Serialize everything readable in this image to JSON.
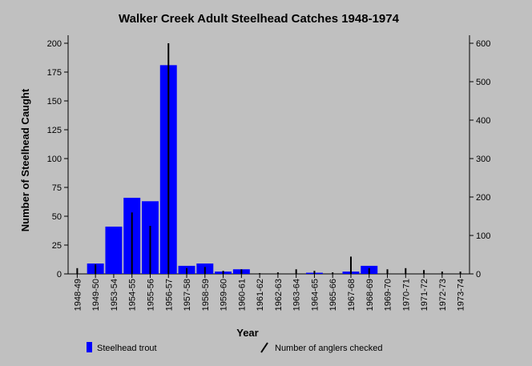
{
  "chart_data": {
    "type": "bar",
    "title": "Walker Creek Adult Steelhead Catches 1948-1974",
    "xlabel": "Year",
    "ylabel": "Number of Steelhead Caught",
    "y2label": "",
    "categories": [
      "1948-49",
      "1949-50",
      "1953-54",
      "1954-55",
      "1955-56",
      "1956-57",
      "1957-58",
      "1958-59",
      "1959-60",
      "1960-61",
      "1961-62",
      "1962-63",
      "1963-64",
      "1964-65",
      "1965-66",
      "1967-68",
      "1968-69",
      "1969-70",
      "1970-71",
      "1971-72",
      "1972-73",
      "1973-74"
    ],
    "ylim": [
      0,
      200
    ],
    "y2lim": [
      0,
      600
    ],
    "yticks": [
      0,
      25,
      50,
      75,
      100,
      125,
      150,
      175,
      200
    ],
    "y2ticks": [
      0,
      100,
      200,
      300,
      400,
      500,
      600
    ],
    "series": [
      {
        "name": "Steelhead trout",
        "kind": "bar",
        "axis": "left",
        "color": "#0000ff",
        "values": [
          0,
          9,
          41,
          66,
          63,
          181,
          7,
          9,
          2,
          4,
          0,
          0,
          0,
          1,
          0,
          2,
          7,
          0,
          0,
          0,
          0,
          0
        ]
      },
      {
        "name": "Number of anglers checked",
        "kind": "line-marker",
        "axis": "right",
        "color": "#000000",
        "values": [
          15,
          25,
          0,
          160,
          125,
          600,
          15,
          18,
          8,
          12,
          2,
          4,
          12,
          8,
          4,
          45,
          15,
          12,
          15,
          10,
          6,
          6
        ]
      }
    ],
    "legend_position": "bottom",
    "grid": false
  }
}
